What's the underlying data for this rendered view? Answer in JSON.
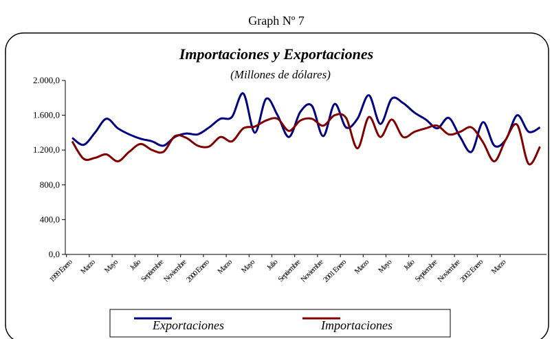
{
  "chart_data": {
    "type": "line",
    "caption": "Graph Nº 7",
    "title": "Importaciones y Exportaciones",
    "subtitle": "(Millones de dólares)",
    "categories": [
      "1999 Enero",
      null,
      "Marzo",
      null,
      "Mayo",
      null,
      "Julio",
      null,
      "Septiembre",
      null,
      "Noviembre",
      null,
      "2000 Enero",
      null,
      "Marzo",
      null,
      "Mayo",
      null,
      "Julio",
      null,
      "Septiembre",
      null,
      "Noviembre",
      null,
      "2001 Enero",
      null,
      "Marzo",
      null,
      "Mayo",
      null,
      "Julio",
      null,
      "Septiembre",
      null,
      "Noviembre",
      null,
      "2002 Enero",
      null,
      "Marzo",
      null,
      null,
      null
    ],
    "series": [
      {
        "name": "Exportaciones",
        "color": "#000080",
        "values": [
          1340,
          1260,
          1400,
          1560,
          1450,
          1380,
          1330,
          1300,
          1250,
          1350,
          1390,
          1380,
          1460,
          1560,
          1580,
          1850,
          1400,
          1790,
          1600,
          1350,
          1640,
          1710,
          1360,
          1730,
          1460,
          1560,
          1830,
          1500,
          1790,
          1740,
          1630,
          1550,
          1450,
          1570,
          1350,
          1180,
          1520,
          1250,
          1320,
          1600,
          1410,
          1460
        ]
      },
      {
        "name": "Importaciones",
        "color": "#800000",
        "values": [
          1300,
          1100,
          1110,
          1150,
          1070,
          1180,
          1270,
          1200,
          1180,
          1360,
          1340,
          1250,
          1240,
          1350,
          1300,
          1450,
          1470,
          1540,
          1560,
          1420,
          1540,
          1560,
          1480,
          1600,
          1570,
          1220,
          1580,
          1350,
          1550,
          1350,
          1410,
          1450,
          1480,
          1380,
          1410,
          1460,
          1290,
          1070,
          1320,
          1490,
          1040,
          1240
        ]
      }
    ],
    "ylim": [
      0,
      2000
    ],
    "yticks": [
      {
        "value": 0,
        "label": "0,0"
      },
      {
        "value": 400,
        "label": "400,0"
      },
      {
        "value": 800,
        "label": "800,0"
      },
      {
        "value": 1200,
        "label": "1.200,0"
      },
      {
        "value": 1600,
        "label": "1.600,0"
      },
      {
        "value": 2000,
        "label": "2.000,0"
      }
    ],
    "legend": "bottom"
  }
}
